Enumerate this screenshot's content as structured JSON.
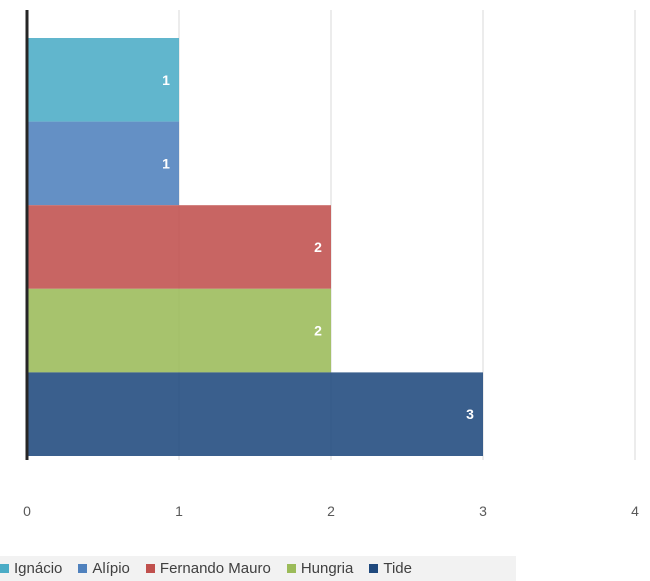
{
  "chart_data": {
    "type": "bar",
    "orientation": "horizontal",
    "stacked": false,
    "categories": [
      "Ignácio",
      "Alípio",
      "Fernando Mauro",
      "Hungria",
      "Tide"
    ],
    "series": [
      {
        "name": "Ignácio",
        "value": 1,
        "label": "1",
        "color": "#4bacc6"
      },
      {
        "name": "Alípio",
        "value": 1,
        "label": "1",
        "color": "#4f81bd"
      },
      {
        "name": "Fernando Mauro",
        "value": 2,
        "label": "2",
        "color": "#c0504d"
      },
      {
        "name": "Hungria",
        "value": 2,
        "label": "2",
        "color": "#9bbb59"
      },
      {
        "name": "Tide",
        "value": 3,
        "label": "3",
        "color": "#1f497d"
      }
    ],
    "xlim": [
      0,
      4
    ],
    "xticks": [
      "0",
      "1",
      "2",
      "3",
      "4"
    ],
    "grid": true,
    "legend": "bottom",
    "title": "",
    "xlabel": "",
    "ylabel": ""
  }
}
